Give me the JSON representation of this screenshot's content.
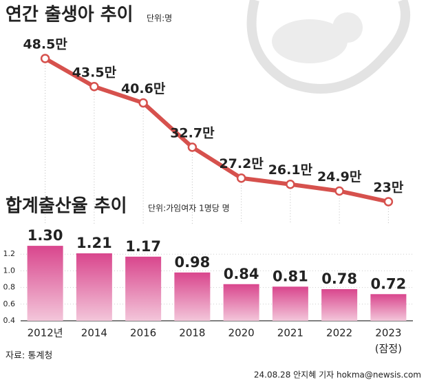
{
  "chart_data": [
    {
      "type": "line",
      "title": "연간 출생아 추이",
      "unit": "단위:명",
      "color": "#d6514d",
      "values": [
        48.5,
        43.5,
        40.6,
        32.7,
        27.2,
        26.1,
        24.9,
        23
      ],
      "value_labels": [
        "48.5만",
        "43.5만",
        "40.6만",
        "32.7만",
        "27.2만",
        "26.1만",
        "24.9만",
        "23만"
      ]
    },
    {
      "type": "bar",
      "title": "합계출산율 추이",
      "unit": "단위:가임여자 1명당 명",
      "color": "#d9468d",
      "categories": [
        "2012년",
        "2014",
        "2016",
        "2018",
        "2020",
        "2021",
        "2022",
        "2023"
      ],
      "last_category_note": "(잠정)",
      "values": [
        1.3,
        1.21,
        1.17,
        0.98,
        0.84,
        0.81,
        0.78,
        0.72
      ],
      "value_labels": [
        "1.30",
        "1.21",
        "1.17",
        "0.98",
        "0.84",
        "0.81",
        "0.78",
        "0.72"
      ],
      "ylim": [
        0.4,
        1.4
      ],
      "yticks": [
        0.4,
        0.6,
        0.8,
        {
          "value": 1,
          "label": "1.0"
        },
        1.2
      ],
      "grid": true,
      "source": "자료: 통계청",
      "credit": "24.08.28 안지혜 기자 hokma@newsis.com"
    }
  ]
}
